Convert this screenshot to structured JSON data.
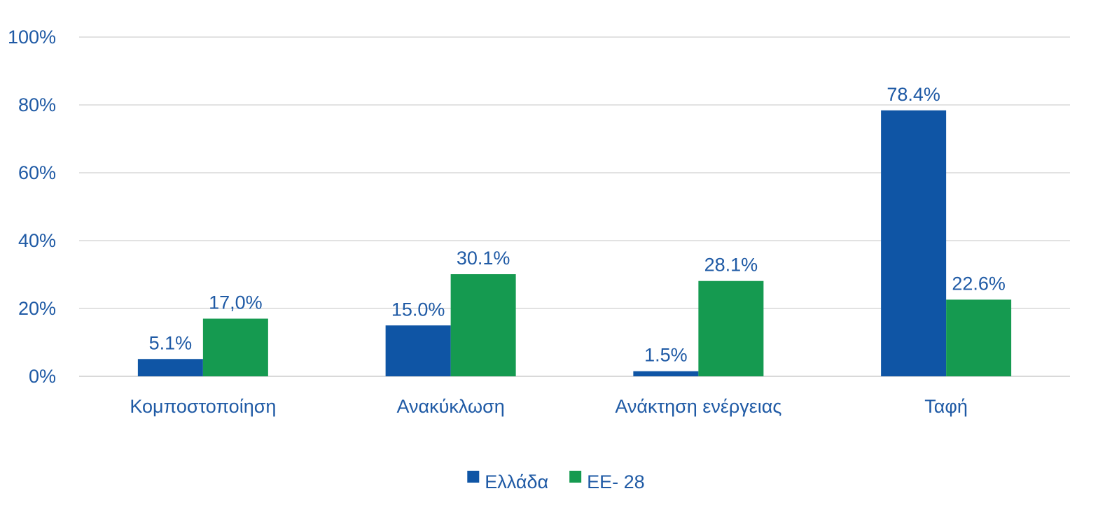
{
  "chart_data": {
    "type": "bar",
    "categories": [
      "Κομποστοποίηση",
      "Ανακύκλωση",
      "Ανάκτηση ενέργειας",
      "Ταφή"
    ],
    "series": [
      {
        "name": "Ελλάδα",
        "color": "#0f55a5",
        "values": [
          5.1,
          15.0,
          1.5,
          78.4
        ],
        "labels": [
          "5.1%",
          "15.0%",
          "1.5%",
          "78.4%"
        ]
      },
      {
        "name": "ΕΕ- 28",
        "color": "#159a50",
        "values": [
          17.0,
          30.1,
          28.1,
          22.6
        ],
        "labels": [
          "17,0%",
          "30.1%",
          "28.1%",
          "22.6%"
        ]
      }
    ],
    "ylim": [
      0,
      100
    ],
    "yticks": [
      0,
      20,
      40,
      60,
      80,
      100
    ],
    "ytick_labels": [
      "0%",
      "20%",
      "40%",
      "60%",
      "80%",
      "100%"
    ],
    "grid": true,
    "legend_position": "bottom",
    "text_color": "#1f5aa5",
    "grid_color": "#d9d9d9"
  }
}
